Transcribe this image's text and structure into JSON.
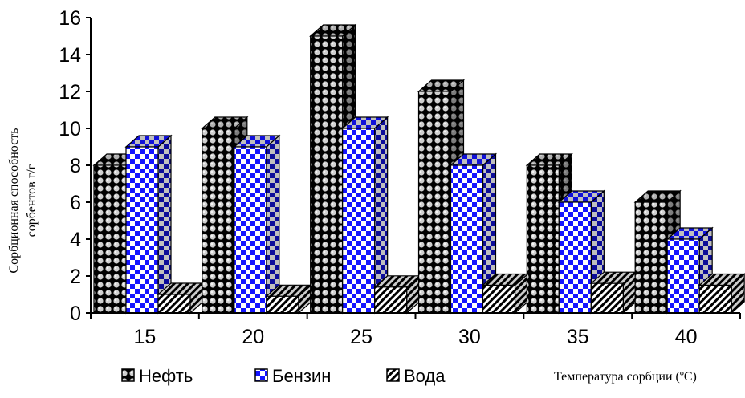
{
  "chart_data": {
    "type": "bar",
    "subtype": "3d-clustered-column",
    "title": "",
    "xlabel": "Температура сорбции (ºС)",
    "ylabel": "Сорбционная способность сорбентов г/г",
    "ylabel_lines": [
      "Сорбционная способность",
      "сорбентов г/г"
    ],
    "categories": [
      "15",
      "20",
      "25",
      "30",
      "35",
      "40"
    ],
    "series": [
      {
        "name": "Нефть",
        "values": [
          8,
          10,
          15,
          12,
          8,
          6
        ],
        "pattern": "dots",
        "fill_color": "#000000",
        "pattern_color": "#cfcfcf"
      },
      {
        "name": "Бензин",
        "values": [
          9,
          9,
          10,
          8,
          6,
          4
        ],
        "pattern": "checker",
        "fill_color": "#1414ff",
        "pattern_color": "#ffffff"
      },
      {
        "name": "Вода",
        "values": [
          1,
          0.9,
          1.4,
          1.5,
          1.6,
          1.5
        ],
        "pattern": "diagonal",
        "fill_color": "#ffffff",
        "pattern_color": "#000000"
      }
    ],
    "ylim": [
      0,
      16
    ],
    "yticks": [
      "0",
      "2",
      "4",
      "6",
      "8",
      "10",
      "12",
      "14",
      "16"
    ],
    "grid": false,
    "legend_position": "bottom"
  }
}
